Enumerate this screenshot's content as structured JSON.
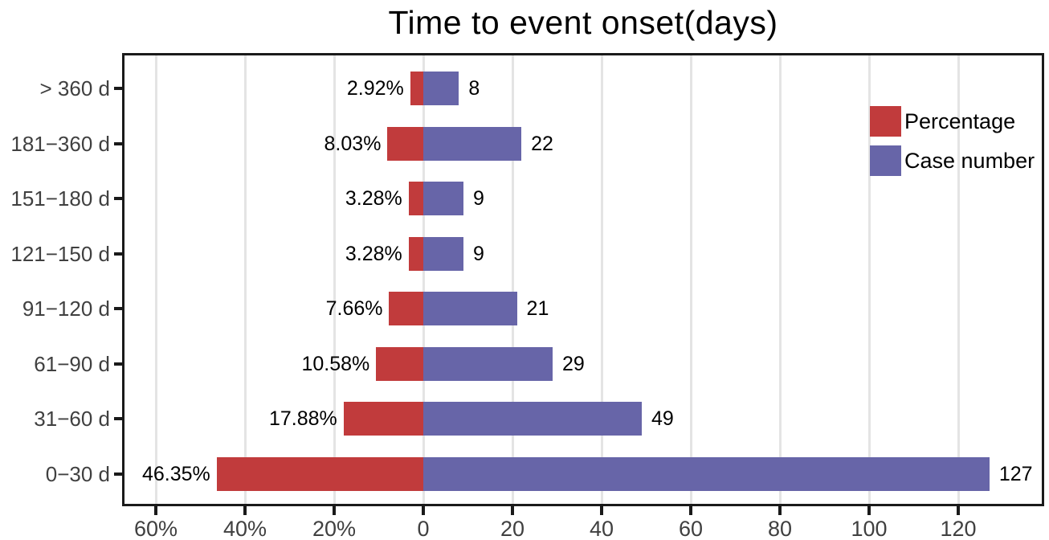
{
  "title": "Time to event onset(days)",
  "legend": [
    {
      "label": "Percentage",
      "color": "#c13b3c"
    },
    {
      "label": "Case number",
      "color": "#6765a8"
    }
  ],
  "colors": {
    "percentage_bar": "#c13b3c",
    "case_number_bar": "#6765a8",
    "gridline": "#e4e4e4",
    "axis": "#1a1a1a",
    "axis_text": "#404040"
  },
  "chart_data": {
    "type": "bar",
    "orientation": "horizontal-diverging",
    "title": "Time to event onset(days)",
    "xlabel": "",
    "ylabel": "",
    "grid": true,
    "legend_position": "top-right-inside",
    "categories": [
      "> 360 d",
      "181−360 d",
      "151−180 d",
      "121−150 d",
      "91−120 d",
      "61−90 d",
      "31−60 d",
      "0−30 d"
    ],
    "series": [
      {
        "name": "Percentage",
        "color": "#c13b3c",
        "direction": "left",
        "values": [
          2.92,
          8.03,
          3.28,
          3.28,
          7.66,
          10.58,
          17.88,
          46.35
        ],
        "labels": [
          "2.92%",
          "8.03%",
          "3.28%",
          "3.28%",
          "7.66%",
          "10.58%",
          "17.88%",
          "46.35%"
        ]
      },
      {
        "name": "Case number",
        "color": "#6765a8",
        "direction": "right",
        "values": [
          8,
          22,
          9,
          9,
          21,
          29,
          49,
          127
        ],
        "labels": [
          "8",
          "22",
          "9",
          "9",
          "21",
          "29",
          "49",
          "127"
        ]
      }
    ],
    "x_ticks": [
      {
        "value": -60,
        "label": "60%"
      },
      {
        "value": -40,
        "label": "40%"
      },
      {
        "value": -20,
        "label": "20%"
      },
      {
        "value": 0,
        "label": "0"
      },
      {
        "value": 20,
        "label": "20"
      },
      {
        "value": 40,
        "label": "40"
      },
      {
        "value": 60,
        "label": "60"
      },
      {
        "value": 80,
        "label": "80"
      },
      {
        "value": 100,
        "label": "100"
      },
      {
        "value": 120,
        "label": "120"
      }
    ],
    "xlim": [
      -67,
      139
    ]
  }
}
